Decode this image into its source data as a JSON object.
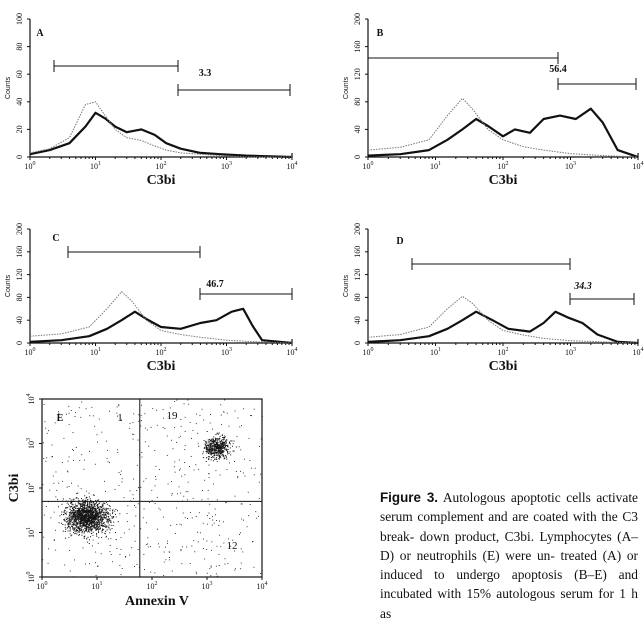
{
  "chart_data": [
    {
      "type": "area",
      "panel": "A",
      "xlabel": "C3bi",
      "ylabel": "Counts",
      "x_scale": "log",
      "xlim": [
        1,
        10000
      ],
      "x_ticks": [
        "10",
        "10",
        "10",
        "10",
        "10"
      ],
      "x_tick_exps": [
        "0",
        "1",
        "2",
        "3",
        "4"
      ],
      "ylim": [
        0,
        100
      ],
      "y_ticks": [
        "0",
        "20",
        "40",
        "60",
        "80",
        "100"
      ],
      "gate_marker_pct": "3.3",
      "series": [
        {
          "style": "solid",
          "x": [
            1,
            2,
            4,
            7,
            10,
            14,
            20,
            30,
            50,
            80,
            120,
            200,
            400,
            800,
            2000,
            10000
          ],
          "y": [
            2,
            5,
            10,
            22,
            32,
            28,
            22,
            18,
            20,
            16,
            10,
            6,
            3,
            2,
            1,
            0
          ]
        },
        {
          "style": "dotted",
          "x": [
            1,
            2,
            4,
            7,
            10,
            14,
            20,
            30,
            50,
            80,
            120,
            200,
            400,
            800,
            2000,
            10000
          ],
          "y": [
            3,
            6,
            14,
            38,
            40,
            30,
            20,
            14,
            12,
            8,
            5,
            3,
            2,
            1,
            0,
            0
          ]
        }
      ]
    },
    {
      "type": "area",
      "panel": "B",
      "xlabel": "C3bi",
      "ylabel": "Counts",
      "x_scale": "log",
      "xlim": [
        1,
        10000
      ],
      "x_tick_exps": [
        "0",
        "1",
        "2",
        "3",
        "4"
      ],
      "ylim": [
        0,
        200
      ],
      "y_ticks": [
        "0",
        "40",
        "80",
        "120",
        "160",
        "200"
      ],
      "gate_marker_pct": "56.4",
      "series": [
        {
          "style": "solid",
          "x": [
            1,
            3,
            8,
            15,
            25,
            40,
            60,
            100,
            150,
            250,
            400,
            700,
            1200,
            2000,
            3000,
            5000,
            10000
          ],
          "y": [
            2,
            4,
            10,
            25,
            40,
            55,
            45,
            30,
            40,
            35,
            55,
            60,
            55,
            70,
            50,
            10,
            0
          ]
        },
        {
          "style": "dotted",
          "x": [
            1,
            3,
            8,
            15,
            25,
            35,
            60,
            100,
            200,
            400,
            1000,
            3000,
            10000
          ],
          "y": [
            10,
            14,
            25,
            60,
            85,
            70,
            40,
            25,
            15,
            10,
            5,
            2,
            0
          ]
        }
      ]
    },
    {
      "type": "area",
      "panel": "C",
      "xlabel": "C3bi",
      "ylabel": "Counts",
      "x_scale": "log",
      "xlim": [
        1,
        10000
      ],
      "x_tick_exps": [
        "0",
        "1",
        "2",
        "3",
        "4"
      ],
      "ylim": [
        0,
        200
      ],
      "y_ticks": [
        "0",
        "40",
        "80",
        "120",
        "160",
        "200"
      ],
      "gate_marker_pct": "46.7",
      "series": [
        {
          "style": "solid",
          "x": [
            1,
            3,
            8,
            15,
            25,
            40,
            60,
            100,
            200,
            400,
            700,
            1200,
            1800,
            2500,
            3500,
            10000
          ],
          "y": [
            2,
            5,
            12,
            25,
            40,
            55,
            42,
            28,
            25,
            35,
            40,
            55,
            60,
            30,
            5,
            0
          ]
        },
        {
          "style": "dotted",
          "x": [
            1,
            3,
            8,
            15,
            25,
            35,
            60,
            100,
            200,
            400,
            1000,
            3000,
            10000
          ],
          "y": [
            12,
            16,
            28,
            60,
            90,
            75,
            40,
            22,
            15,
            10,
            5,
            2,
            0
          ]
        }
      ]
    },
    {
      "type": "area",
      "panel": "D",
      "xlabel": "C3bi",
      "ylabel": "Counts",
      "x_scale": "log",
      "xlim": [
        1,
        10000
      ],
      "x_tick_exps": [
        "0",
        "1",
        "2",
        "3",
        "4"
      ],
      "ylim": [
        0,
        200
      ],
      "y_ticks": [
        "0",
        "40",
        "80",
        "120",
        "160",
        "200"
      ],
      "gate_marker_pct": "34.3",
      "series": [
        {
          "style": "solid",
          "x": [
            1,
            3,
            8,
            15,
            25,
            40,
            70,
            120,
            250,
            400,
            600,
            900,
            1500,
            2500,
            5000,
            10000
          ],
          "y": [
            2,
            5,
            12,
            25,
            40,
            55,
            40,
            25,
            20,
            35,
            55,
            45,
            35,
            15,
            2,
            0
          ]
        },
        {
          "style": "dotted",
          "x": [
            1,
            3,
            8,
            15,
            25,
            35,
            60,
            100,
            200,
            400,
            1000,
            3000,
            10000
          ],
          "y": [
            10,
            15,
            28,
            60,
            82,
            70,
            40,
            22,
            14,
            8,
            4,
            2,
            0
          ]
        }
      ]
    },
    {
      "type": "scatter",
      "panel": "E",
      "xlabel": "Annexin V",
      "ylabel": "C3bi",
      "x_scale": "log",
      "y_scale": "log",
      "xlim": [
        1,
        10000
      ],
      "ylim": [
        1,
        10000
      ],
      "x_tick_exps": [
        "0",
        "1",
        "2",
        "3",
        "4"
      ],
      "y_tick_exps": [
        "0",
        "1",
        "2",
        "3",
        "4"
      ],
      "quadrant_values": {
        "upper_left": "1",
        "upper_right": "19",
        "lower_right": "12"
      }
    }
  ],
  "caption": {
    "label": "Figure 3.",
    "lines": [
      "Autologous apoptotic",
      "cells activate serum complement",
      "and are coated with the C3 break-",
      "down product, C3bi. Lymphocytes",
      "(A–D) or neutrophils (E) were un-",
      "treated (A) or induced to undergo",
      "apoptosis (B–E) and incubated with",
      "15% autologous serum for 1 h as"
    ]
  }
}
